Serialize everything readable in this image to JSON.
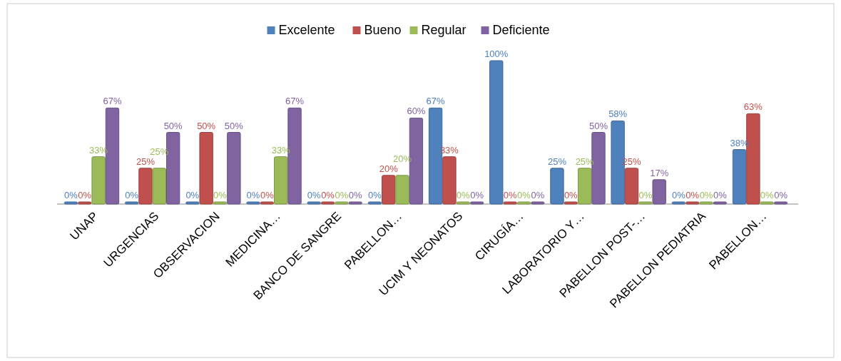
{
  "chart_data": {
    "type": "bar",
    "categories": [
      "UNAP",
      "URGENCIAS",
      "OBSERVACION",
      "MEDICINA…",
      "BANCO DE SANGRE",
      "PABELLON…",
      "UCIM Y NEONATOS",
      "CIRUGÍA…",
      "LABORATORIO Y…",
      "PABELLON POST-…",
      "PABELLON PEDIATRIA",
      "PABELLON…"
    ],
    "series": [
      {
        "name": "Excelente",
        "color": "#4f81bd",
        "values": [
          0,
          0,
          0,
          0,
          0,
          0,
          67,
          100,
          25,
          58,
          0,
          38
        ],
        "value_labels": [
          "0%",
          "0%",
          "0%",
          "0%",
          "0%",
          "0%",
          "67%",
          "100%",
          "25%",
          "58%",
          "0%",
          "38%"
        ]
      },
      {
        "name": "Bueno",
        "color": "#c0504d",
        "values": [
          0,
          25,
          50,
          0,
          0,
          20,
          33,
          0,
          0,
          25,
          0,
          63
        ],
        "value_labels": [
          "0%",
          "25%",
          "50%",
          "0%",
          "0%",
          "20%",
          "33%",
          "0%",
          "0%",
          "25%",
          "0%",
          "63%"
        ]
      },
      {
        "name": "Regular",
        "color": "#9bbb59",
        "values": [
          33,
          25,
          0,
          33,
          0,
          20,
          0,
          0,
          25,
          0,
          0,
          0
        ],
        "value_labels": [
          "33%",
          "25%",
          "0%",
          "33%",
          "0%",
          "20%",
          "0%",
          "0%",
          "25%",
          "0%",
          "0%",
          "0%"
        ]
      },
      {
        "name": "Deficiente",
        "color": "#8064a2",
        "values": [
          67,
          50,
          50,
          67,
          0,
          60,
          0,
          0,
          50,
          17,
          0,
          0
        ],
        "value_labels": [
          "67%",
          "50%",
          "50%",
          "67%",
          "0%",
          "60%",
          "0%",
          "0%",
          "50%",
          "17%",
          "0%",
          "0%"
        ]
      }
    ],
    "legend": "top"
  }
}
